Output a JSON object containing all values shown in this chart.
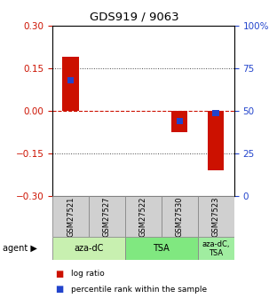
{
  "title": "GDS919 / 9063",
  "samples": [
    "GSM27521",
    "GSM27527",
    "GSM27522",
    "GSM27530",
    "GSM27523"
  ],
  "log_ratios": [
    0.19,
    0.0,
    0.0,
    -0.075,
    -0.21
  ],
  "pct_bar_values": [
    0.68,
    0.0,
    0.0,
    0.44,
    0.485
  ],
  "ylim": [
    -0.3,
    0.3
  ],
  "yticks_left": [
    -0.3,
    -0.15,
    0.0,
    0.15,
    0.3
  ],
  "yticks_right": [
    0,
    25,
    50,
    75,
    100
  ],
  "agent_groups": [
    {
      "label": "aza-dC",
      "start": 0,
      "end": 2,
      "color": "#c8f0b0"
    },
    {
      "label": "TSA",
      "start": 2,
      "end": 4,
      "color": "#80e880"
    },
    {
      "label": "aza-dC,\nTSA",
      "start": 4,
      "end": 5,
      "color": "#a0eda0"
    }
  ],
  "red_color": "#cc1100",
  "blue_color": "#2244cc",
  "hline_color": "#cc1100",
  "sample_box_color": "#d0d0d0",
  "bar_width": 0.45,
  "pct_bar_width": 0.18,
  "pct_bar_height": 0.022
}
